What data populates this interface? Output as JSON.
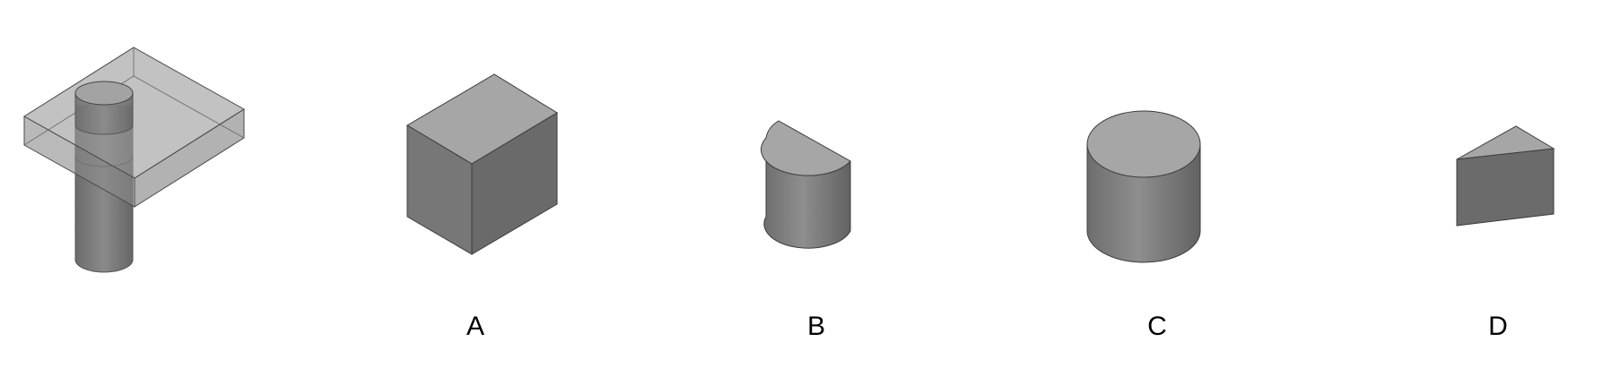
{
  "figure": {
    "options": [
      {
        "key": "A",
        "label": "A",
        "shape": "cube"
      },
      {
        "key": "B",
        "label": "B",
        "shape": "half-cylinder"
      },
      {
        "key": "C",
        "label": "C",
        "shape": "cylinder"
      },
      {
        "key": "D",
        "label": "D",
        "shape": "triangular-prism"
      }
    ],
    "colors": {
      "top_face": "#a6a6a6",
      "left_face": "#7a7a7a",
      "right_face": "#6b6b6b",
      "edge": "#3c3c3c",
      "cylinder_mid": "#8c8c8c"
    }
  }
}
